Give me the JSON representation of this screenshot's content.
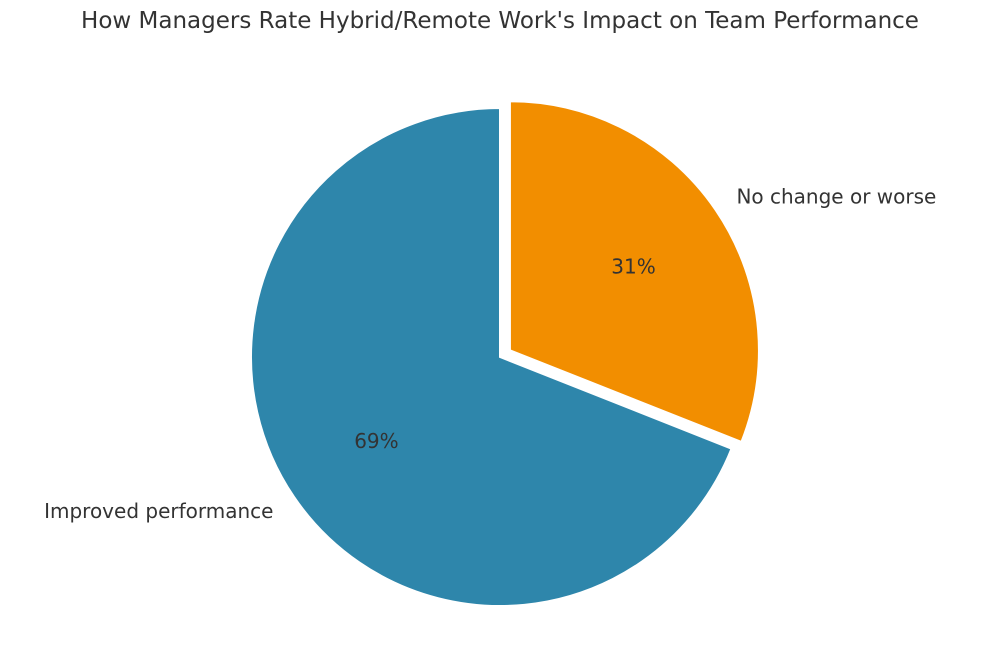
{
  "chart_data": {
    "type": "pie",
    "title": "How Managers Rate Hybrid/Remote Work's Impact on Team Performance",
    "slices": [
      {
        "label": "No change or worse",
        "value": 31,
        "pct_label": "31%",
        "color": "#F28E00",
        "exploded": true
      },
      {
        "label": "Improved performance",
        "value": 69,
        "pct_label": "69%",
        "color": "#2E86AB",
        "exploded": false
      }
    ],
    "start_angle": "top (12 o'clock)",
    "direction": "clockwise"
  }
}
